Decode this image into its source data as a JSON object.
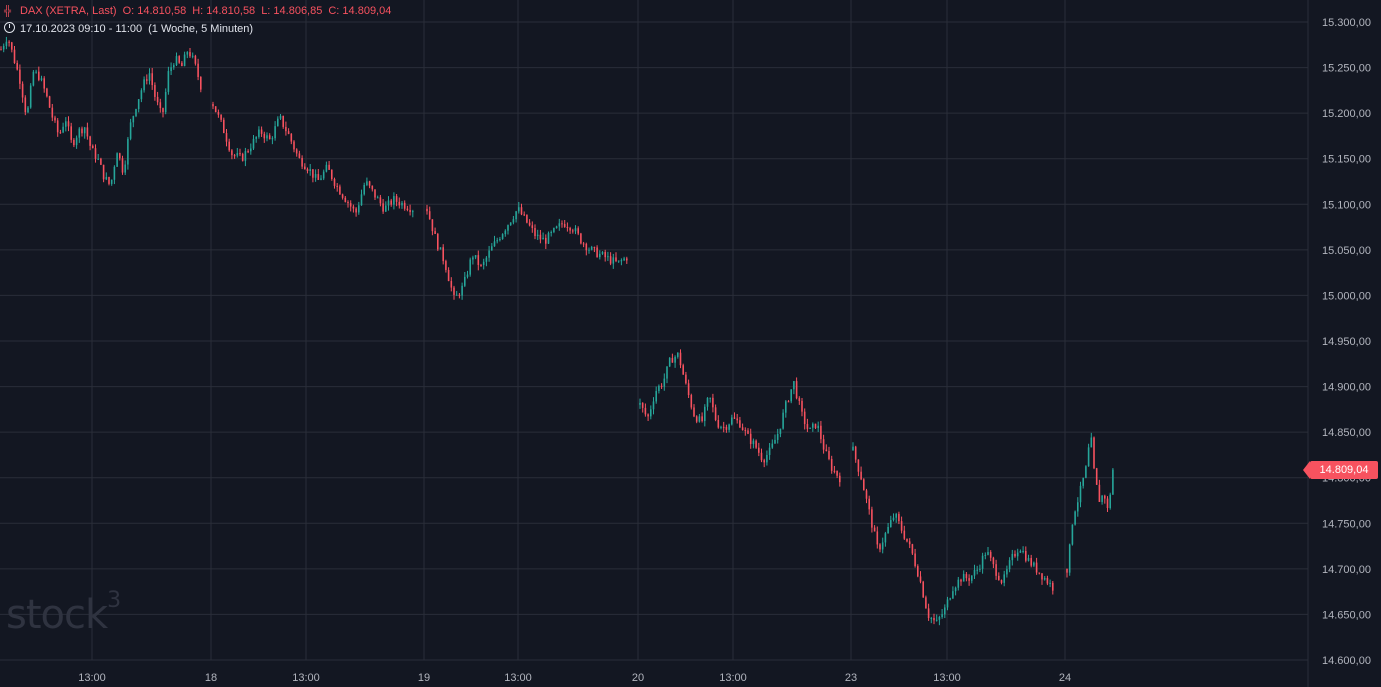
{
  "header": {
    "icon": "ohlc-icon",
    "symbol": "DAX (XETRA, Last)",
    "open": "O: 14.810,58",
    "high": "H: 14.810,58",
    "low": "L: 14.806,85",
    "close": "C: 14.809,04",
    "range_icon": "clock-icon",
    "range": "17.10.2023 09:10 - 11:00",
    "interval": "(1 Woche, 5 Minuten)"
  },
  "logo": {
    "text": "stock",
    "sup": "3"
  },
  "last_price": "14.809,04",
  "colors": {
    "background": "#131722",
    "grid": "#2a2e39",
    "up": "#26a69a",
    "down": "#f7525f",
    "axis_text": "#b2b5be"
  },
  "chart_data": {
    "type": "candlestick",
    "title": "",
    "ylim": [
      14590,
      15310
    ],
    "y_ticks": [
      "15.300,00",
      "15.250,00",
      "15.200,00",
      "15.150,00",
      "15.100,00",
      "15.050,00",
      "15.000,00",
      "14.950,00",
      "14.900,00",
      "14.850,00",
      "14.800,00",
      "14.750,00",
      "14.700,00",
      "14.650,00",
      "14.600,00"
    ],
    "y_tick_values": [
      15300,
      15250,
      15200,
      15150,
      15100,
      15050,
      15000,
      14950,
      14900,
      14850,
      14800,
      14750,
      14700,
      14650,
      14600
    ],
    "x_ticks": [
      "13:00",
      "18",
      "13:00",
      "19",
      "13:00",
      "20",
      "13:00",
      "23",
      "13:00",
      "24"
    ],
    "grid": true,
    "sessions": [
      {
        "day": "17",
        "path": [
          15270,
          15285,
          15260,
          15235,
          15195,
          15245,
          15240,
          15220,
          15195,
          15175,
          15195,
          15165,
          15180,
          15185,
          15160,
          15150,
          15130,
          15120,
          15160,
          15135,
          15185,
          15210,
          15230,
          15245,
          15215,
          15195,
          15245,
          15260,
          15250,
          15270,
          15255,
          15230
        ]
      },
      {
        "day": "18",
        "path": [
          15210,
          15185,
          15155,
          15150,
          15165,
          15180,
          15170,
          15195,
          15175,
          15150,
          15140,
          15125,
          15140,
          15120,
          15105,
          15090,
          15125,
          15110,
          15095,
          15105,
          15100,
          15095
        ]
      },
      {
        "day": "19",
        "path": [
          15095,
          15060,
          15035,
          14995,
          15010,
          15045,
          15030,
          15050,
          15065,
          15080,
          15095,
          15080,
          15065,
          15060,
          15070,
          15080,
          15075,
          15060,
          15050,
          15045,
          15040,
          15035,
          15042
        ]
      },
      {
        "day": "20",
        "path": [
          14880,
          14865,
          14895,
          14905,
          14930,
          14935,
          14900,
          14870,
          14860,
          14890,
          14860,
          14855,
          14865,
          14860,
          14845,
          14835,
          14820,
          14830,
          14850,
          14880,
          14905,
          14870,
          14850,
          14860,
          14830,
          14810,
          14800
        ]
      },
      {
        "day": "23",
        "path": [
          14830,
          14800,
          14760,
          14720,
          14740,
          14760,
          14740,
          14720,
          14690,
          14650,
          14640,
          14655,
          14680,
          14690,
          14690,
          14700,
          14720,
          14700,
          14685,
          14710,
          14725,
          14710,
          14700,
          14690,
          14680
        ]
      },
      {
        "day": "24",
        "path": [
          14700,
          14725,
          14760,
          14770,
          14780,
          14795,
          14805,
          14830,
          14840,
          14800,
          14785,
          14770,
          14790,
          14760,
          14780,
          14809
        ]
      }
    ]
  }
}
